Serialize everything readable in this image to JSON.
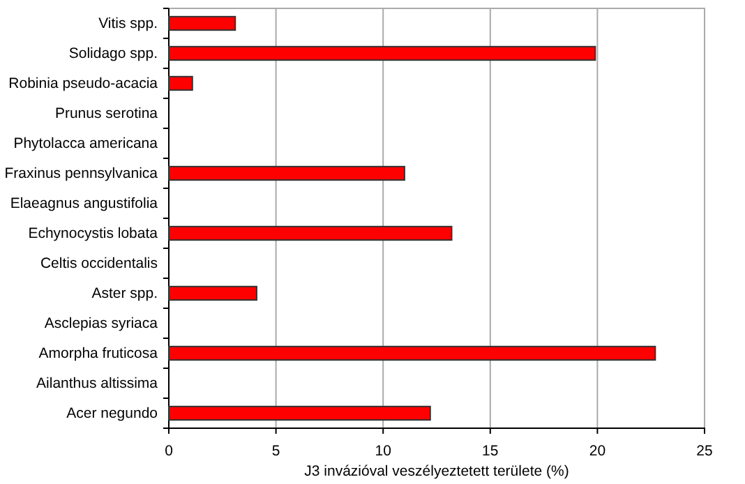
{
  "chart_data": {
    "type": "bar",
    "orientation": "horizontal",
    "xlabel": "J3 invázióval veszélyeztetett területe (%)",
    "categories": [
      "Vitis spp.",
      "Solidago spp.",
      "Robinia pseudo-acacia",
      "Prunus serotina",
      "Phytolacca americana",
      "Fraxinus pennsylvanica",
      "Elaeagnus angustifolia",
      "Echynocystis lobata",
      "Celtis occidentalis",
      "Aster spp.",
      "Asclepias syriaca",
      "Amorpha fruticosa",
      "Ailanthus altissima",
      "Acer negundo"
    ],
    "values": [
      3.1,
      19.9,
      1.1,
      0,
      0,
      11.0,
      0,
      13.2,
      0,
      4.1,
      0,
      22.7,
      0,
      12.2
    ],
    "color": "#ff0000",
    "xlim": [
      0,
      25
    ],
    "xticks": [
      0,
      5,
      10,
      15,
      20,
      25
    ],
    "grid": "x"
  }
}
